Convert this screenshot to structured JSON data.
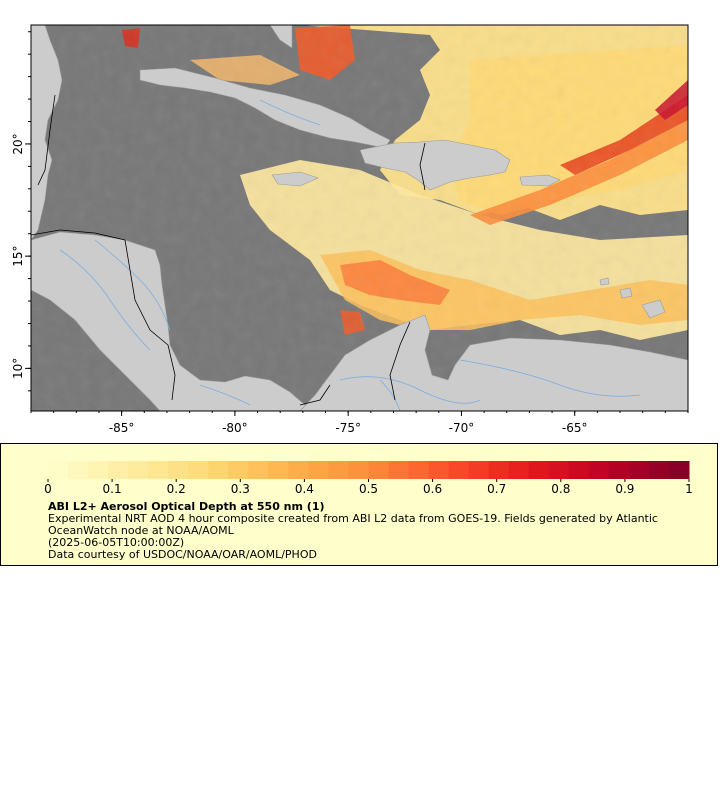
{
  "map": {
    "colors": {
      "ocean": "#777777",
      "land": "#cccccc",
      "coast": "#999999",
      "border": "#000000",
      "river": "#7aaee0",
      "frame": "#000000"
    },
    "extent": {
      "lon": [
        -89,
        -60
      ],
      "lat": [
        8.1,
        25.3
      ]
    },
    "lon_ticks": [
      {
        "value": -85,
        "label": "-85°"
      },
      {
        "value": -80,
        "label": "-80°"
      },
      {
        "value": -75,
        "label": "-75°"
      },
      {
        "value": -70,
        "label": "-70°"
      },
      {
        "value": -65,
        "label": "-65°"
      }
    ],
    "lat_ticks": [
      {
        "value": 20,
        "label": "20°"
      },
      {
        "value": 15,
        "label": "15°"
      },
      {
        "value": 10,
        "label": "10°"
      }
    ]
  },
  "legend": {
    "title": "ABI L2+ Aerosol Optical Depth at 550 nm (1)",
    "description": "Experimental NRT AOD 4 hour composite created from ABI L2 data from GOES-19. Fields generated by Atlantic OceanWatch node at NOAA/AOML",
    "timestamp": "(2025-06-05T10:00:00Z)",
    "credit": "Data courtesy of USDOC/NOAA/OAR/AOML/PHOD",
    "scale": {
      "min": 0,
      "max": 1
    },
    "tick_labels": [
      "0",
      "0.1",
      "0.2",
      "0.3",
      "0.4",
      "0.5",
      "0.6",
      "0.7",
      "0.8",
      "0.9",
      "1"
    ],
    "colormap": [
      "#ffffcc",
      "#ffeda0",
      "#fed976",
      "#feb24c",
      "#fd8d3c",
      "#fc4e2a",
      "#e31a1c",
      "#bd0026",
      "#800026"
    ]
  }
}
